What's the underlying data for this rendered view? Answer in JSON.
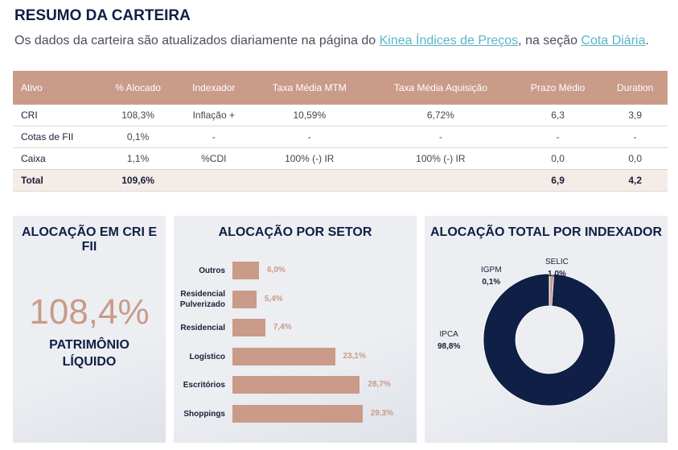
{
  "header": {
    "title": "RESUMO DA CARTEIRA",
    "subtitle_pre": "Os dados da carteira são atualizados diariamente na página do ",
    "link1": "Kinea Índices de Preços",
    "subtitle_mid": ", na seção ",
    "link2": "Cota Diária",
    "subtitle_end": "."
  },
  "table": {
    "columns": [
      "Ativo",
      "% Alocado",
      "Indexador",
      "Taxa Média MTM",
      "Taxa Média Aquisição",
      "Prazo Médio",
      "Duration"
    ],
    "rows": [
      [
        "CRI",
        "108,3%",
        "Inflação +",
        "10,59%",
        "6,72%",
        "6,3",
        "3,9"
      ],
      [
        "Cotas de FII",
        "0,1%",
        "-",
        "-",
        "-",
        "-",
        "-"
      ],
      [
        "Caixa",
        "1,1%",
        "%CDI",
        "100% (-) IR",
        "100% (-) IR",
        "0,0",
        "0,0"
      ]
    ],
    "total": [
      "Total",
      "109,6%",
      "",
      "",
      "",
      "6,9",
      "4,2"
    ]
  },
  "panel1": {
    "title": "ALOCAÇÃO EM CRI E FII",
    "value": "108,4%",
    "label1": "PATRIMÔNIO",
    "label2": "LÍQUIDO"
  },
  "panel2": {
    "title": "ALOCAÇÃO POR SETOR"
  },
  "panel3": {
    "title": "ALOCAÇÃO TOTAL POR INDEXADOR"
  },
  "chart_data": [
    {
      "type": "bar",
      "orientation": "horizontal",
      "title": "ALOCAÇÃO POR SETOR",
      "categories": [
        "Outros",
        "Residencial Pulverizado",
        "Residencial",
        "Logístico",
        "Escritórios",
        "Shoppings"
      ],
      "values": [
        6.0,
        5.4,
        7.4,
        23.1,
        28.7,
        29.3
      ],
      "labels": [
        "6,0%",
        "5,4%",
        "7,4%",
        "23,1%",
        "28,7%",
        "29,3%"
      ],
      "color": "#c99b88"
    },
    {
      "type": "pie",
      "donut": true,
      "title": "ALOCAÇÃO TOTAL POR INDEXADOR",
      "categories": [
        "IPCA",
        "IGPM",
        "SELIC"
      ],
      "values": [
        98.8,
        0.1,
        1.0
      ],
      "labels": [
        "98,8%",
        "0,1%",
        "1,0%"
      ],
      "colors": [
        "#0f1f45",
        "#8a8f9c",
        "#c99b88"
      ]
    }
  ]
}
